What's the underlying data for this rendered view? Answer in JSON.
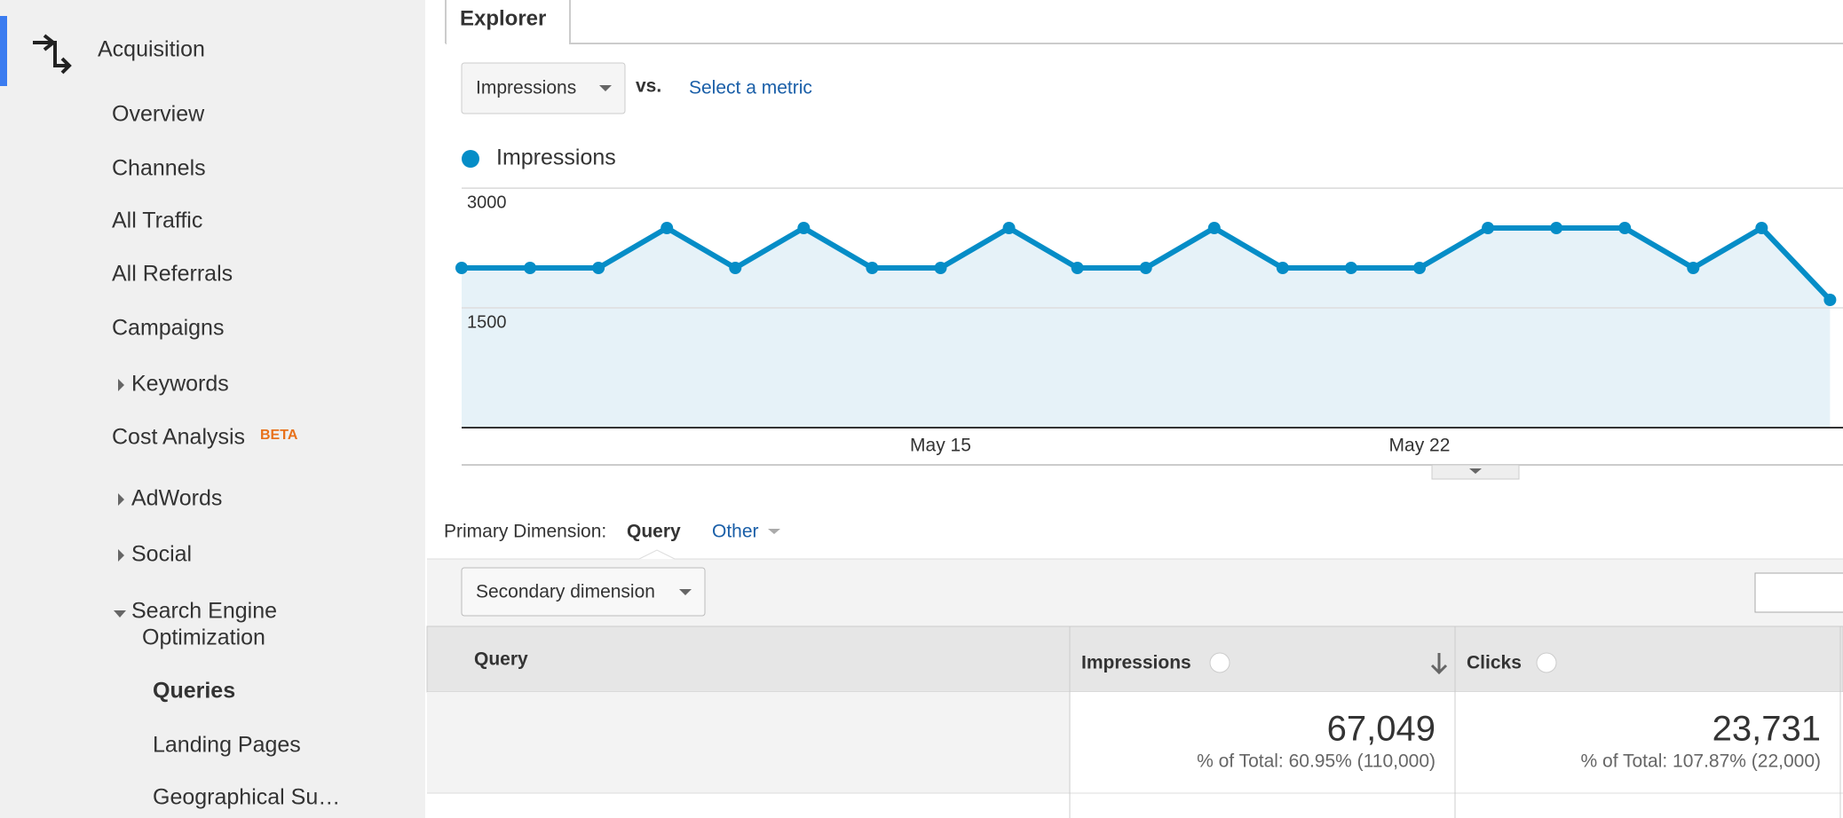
{
  "sidebar": {
    "section": "Acquisition",
    "items": [
      "Overview",
      "Channels",
      "All Traffic",
      "All Referrals",
      "Campaigns",
      "Keywords",
      "Cost Analysis",
      "AdWords",
      "Social"
    ],
    "badge": "BETA",
    "seo": [
      "Search Engine",
      "Optimization"
    ],
    "subitems": [
      "Queries",
      "Landing Pages",
      "Geographical Su…"
    ]
  },
  "explorer": {
    "tab": "Explorer",
    "metric": "Impressions",
    "vs": "vs.",
    "select_metric": "Select a metric"
  },
  "chart_data": {
    "type": "line",
    "categories": [
      null,
      null,
      null,
      null,
      null,
      null,
      null,
      "May 15",
      null,
      null,
      null,
      null,
      null,
      null,
      "May 22",
      null,
      null,
      null,
      null,
      null,
      null
    ],
    "series": [
      {
        "name": "Impressions",
        "color": "#058dc7",
        "values": [
          2000,
          2000,
          2000,
          2500,
          2000,
          2500,
          2000,
          2000,
          2500,
          2000,
          2000,
          2500,
          2000,
          2000,
          2000,
          2500,
          2500,
          2500,
          2000,
          2500,
          1600
        ]
      }
    ],
    "ylim": [
      0,
      3000
    ],
    "yticks": [
      1500,
      3000
    ],
    "grid": true
  },
  "dimension": {
    "label": "Primary Dimension:",
    "active": "Query",
    "other": "Other",
    "secondary": "Secondary dimension"
  },
  "table": {
    "columns": [
      "Query",
      "Impressions",
      "Clicks"
    ],
    "totals": [
      {
        "value": "67,049",
        "note": "% of Total: 60.95% (110,000)"
      },
      {
        "value": "23,731",
        "note": "% of Total: 107.87% (22,000)"
      }
    ]
  }
}
